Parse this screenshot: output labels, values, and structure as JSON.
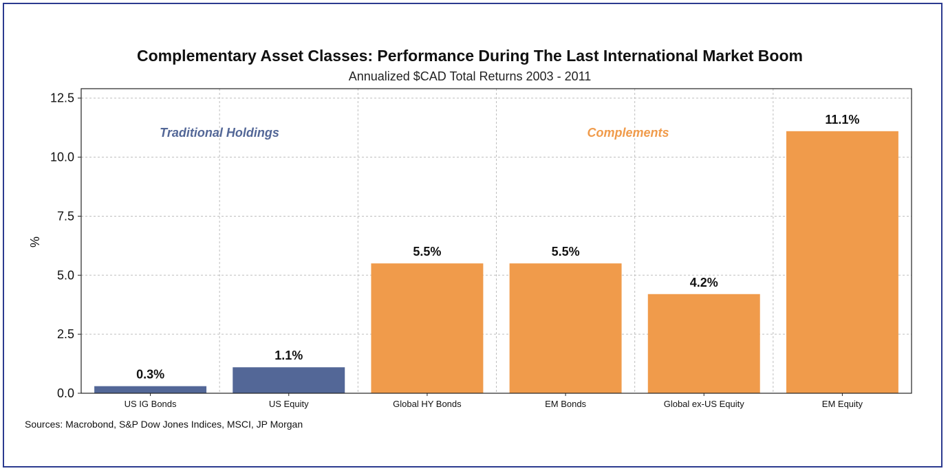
{
  "chart_data": {
    "type": "bar",
    "title": "Complementary Asset Classes: Performance During The Last International Market Boom",
    "subtitle": "Annualized $CAD Total Returns 2003 - 2011",
    "xlabel": "",
    "ylabel": "%",
    "ylim": [
      0,
      12.9
    ],
    "yticks": [
      "0.0",
      "2.5",
      "5.0",
      "7.5",
      "10.0",
      "12.5"
    ],
    "ytick_values": [
      0,
      2.5,
      5.0,
      7.5,
      10.0,
      12.5
    ],
    "grid": true,
    "categories": [
      "US IG Bonds",
      "US Equity",
      "Global HY Bonds",
      "EM Bonds",
      "Global ex-US Equity",
      "EM Equity"
    ],
    "values": [
      0.3,
      1.1,
      5.5,
      5.5,
      4.2,
      11.1
    ],
    "data_labels": [
      "0.3%",
      "1.1%",
      "5.5%",
      "5.5%",
      "4.2%",
      "11.1%"
    ],
    "groups": [
      "Traditional Holdings",
      "Traditional Holdings",
      "Complements",
      "Complements",
      "Complements",
      "Complements"
    ],
    "annotations": [
      "Traditional Holdings",
      "Complements"
    ],
    "colors": {
      "Traditional Holdings": "#536797",
      "Complements": "#f09b4b"
    },
    "annotation_colors": [
      "#536797",
      "#f09b4b"
    ]
  },
  "sources": "Sources: Macrobond, S&P Dow Jones Indices, MSCI, JP Morgan",
  "frame_color": "#2b3a8f"
}
